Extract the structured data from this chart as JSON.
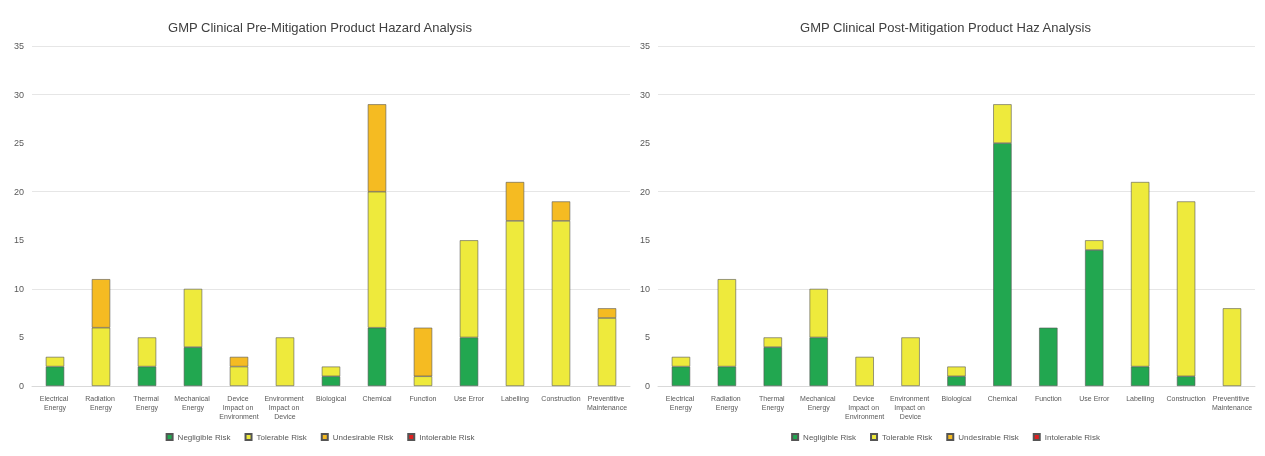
{
  "chart_data": [
    {
      "type": "bar",
      "title": "GMP Clinical Pre-Mitigation Product Hazard Analysis",
      "stacked": true,
      "grid": "y",
      "legend": "bottom",
      "ylim": [
        0,
        35
      ],
      "yticks": [
        0,
        5,
        10,
        15,
        20,
        25,
        30,
        35
      ],
      "categories": [
        "Electrical Energy",
        "Radiation Energy",
        "Thermal Energy",
        "Mechanical Energy",
        "Device Impact on Environment",
        "Environment Impact on Device",
        "Biological",
        "Chemical",
        "Function",
        "Use Error",
        "Labelling",
        "Construction",
        "Preventitive Maintenance"
      ],
      "series": [
        {
          "name": "Negligible Risk",
          "color": "#22a750",
          "values": [
            2,
            0,
            2,
            4,
            0,
            0,
            1,
            6,
            0,
            5,
            0,
            0,
            0
          ]
        },
        {
          "name": "Tolerable Risk",
          "color": "#eeea3c",
          "values": [
            1,
            6,
            3,
            6,
            2,
            5,
            1,
            14,
            1,
            10,
            17,
            17,
            7
          ]
        },
        {
          "name": "Undesirable Risk",
          "color": "#f5bb22",
          "values": [
            0,
            5,
            0,
            0,
            1,
            0,
            0,
            9,
            5,
            0,
            4,
            2,
            1
          ]
        },
        {
          "name": "Intolerable Risk",
          "color": "#e02020",
          "values": [
            0,
            0,
            0,
            0,
            0,
            0,
            0,
            0,
            0,
            0,
            0,
            0,
            0
          ]
        }
      ]
    },
    {
      "type": "bar",
      "title": "GMP Clinical Post-Mitigation Product Haz Analysis",
      "stacked": true,
      "grid": "y",
      "legend": "bottom",
      "ylim": [
        0,
        35
      ],
      "yticks": [
        0,
        5,
        10,
        15,
        20,
        25,
        30,
        35
      ],
      "categories": [
        "Electrical Energy",
        "Radiation Energy",
        "Thermal Energy",
        "Mechanical Energy",
        "Device Impact on Environment",
        "Environment Impact on Device",
        "Biological",
        "Chemical",
        "Function",
        "Use Error",
        "Labelling",
        "Construction",
        "Preventitive Maintenance"
      ],
      "series": [
        {
          "name": "Negligible Risk",
          "color": "#22a750",
          "values": [
            2,
            2,
            4,
            5,
            0,
            0,
            1,
            25,
            6,
            14,
            2,
            1,
            0
          ]
        },
        {
          "name": "Tolerable Risk",
          "color": "#eeea3c",
          "values": [
            1,
            9,
            1,
            5,
            3,
            5,
            1,
            4,
            0,
            1,
            19,
            18,
            8
          ]
        },
        {
          "name": "Undesirable Risk",
          "color": "#f5bb22",
          "values": [
            0,
            0,
            0,
            0,
            0,
            0,
            0,
            0,
            0,
            0,
            0,
            0,
            0
          ]
        },
        {
          "name": "Intolerable Risk",
          "color": "#e02020",
          "values": [
            0,
            0,
            0,
            0,
            0,
            0,
            0,
            0,
            0,
            0,
            0,
            0,
            0
          ]
        }
      ]
    }
  ]
}
